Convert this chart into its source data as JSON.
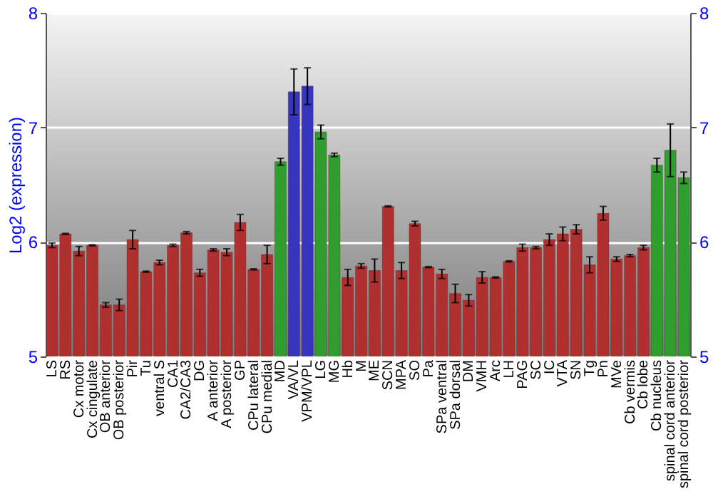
{
  "chart_data": {
    "type": "bar",
    "ylabel": "Log2 (expression)",
    "categories": [
      "LS",
      "RS",
      "Cx motor",
      "Cx cingulate",
      "OB anterior",
      "OB posterior",
      "Pir",
      "Tu",
      "ventral S",
      "CA1",
      "CA2/CA3",
      "DG",
      "A anterior",
      "A posterior",
      "GP",
      "CPu lateral",
      "CPu medial",
      "MD",
      "VA/VL",
      "VPM/VPL",
      "LG",
      "MG",
      "Hb",
      "M",
      "ME",
      "SCN",
      "MPA",
      "SO",
      "Pa",
      "SPa ventral",
      "SPa dorsal",
      "DM",
      "VMH",
      "Arc",
      "LH",
      "PAG",
      "SC",
      "IC",
      "VTA",
      "SN",
      "Tg",
      "Pn",
      "MVe",
      "Cb vermis",
      "Cb lobe",
      "Cb nucleus",
      "spinal cord anterior",
      "spinal cord posterior"
    ],
    "values": [
      5.97,
      6.07,
      5.92,
      5.97,
      5.45,
      5.45,
      6.02,
      5.74,
      5.82,
      5.97,
      6.08,
      5.73,
      5.93,
      5.91,
      6.17,
      5.76,
      5.89,
      6.7,
      7.31,
      7.36,
      6.96,
      6.76,
      5.69,
      5.79,
      5.75,
      6.31,
      5.75,
      6.16,
      5.78,
      5.72,
      5.55,
      5.49,
      5.69,
      5.69,
      5.83,
      5.95,
      5.95,
      6.02,
      6.07,
      6.11,
      5.8,
      6.25,
      5.85,
      5.88,
      5.95,
      6.67,
      6.8,
      6.56
    ],
    "errors": [
      0.02,
      0.005,
      0.04,
      0.005,
      0.02,
      0.05,
      0.08,
      0.005,
      0.02,
      0.01,
      0.01,
      0.03,
      0.01,
      0.03,
      0.07,
      0.005,
      0.08,
      0.03,
      0.2,
      0.16,
      0.06,
      0.015,
      0.07,
      0.02,
      0.1,
      0.005,
      0.07,
      0.02,
      0.005,
      0.04,
      0.08,
      0.05,
      0.05,
      0.005,
      0.005,
      0.03,
      0.01,
      0.05,
      0.06,
      0.04,
      0.07,
      0.06,
      0.02,
      0.01,
      0.02,
      0.06,
      0.23,
      0.05
    ],
    "colors": [
      "#b03030",
      "#b03030",
      "#b03030",
      "#b03030",
      "#b03030",
      "#b03030",
      "#b03030",
      "#b03030",
      "#b03030",
      "#b03030",
      "#b03030",
      "#b03030",
      "#b03030",
      "#b03030",
      "#b03030",
      "#b03030",
      "#b03030",
      "#2f9e2f",
      "#3535c0",
      "#3535c0",
      "#2f9e2f",
      "#2f9e2f",
      "#b03030",
      "#b03030",
      "#b03030",
      "#b03030",
      "#b03030",
      "#b03030",
      "#b03030",
      "#b03030",
      "#b03030",
      "#b03030",
      "#b03030",
      "#b03030",
      "#b03030",
      "#b03030",
      "#b03030",
      "#b03030",
      "#b03030",
      "#b03030",
      "#b03030",
      "#b03030",
      "#b03030",
      "#b03030",
      "#b03030",
      "#2f9e2f",
      "#2f9e2f",
      "#2f9e2f"
    ],
    "ylim": [
      5,
      8
    ],
    "yticks": [
      5,
      6,
      7,
      8
    ],
    "y2lim": [
      5,
      8
    ],
    "y2ticks": [
      5,
      6,
      7,
      8
    ],
    "grid": "y"
  }
}
